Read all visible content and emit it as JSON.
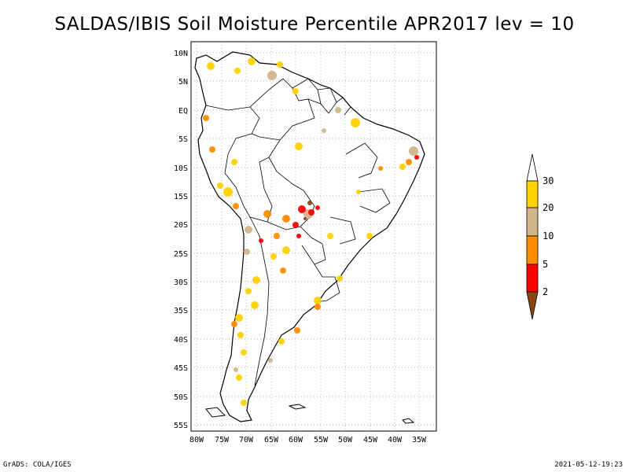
{
  "title": "SALDAS/IBIS Soil Moisture Percentile APR2017 lev = 10",
  "map": {
    "lat_labels": [
      "10N",
      "5N",
      "EQ",
      "5S",
      "10S",
      "15S",
      "20S",
      "25S",
      "30S",
      "35S",
      "40S",
      "45S",
      "50S",
      "55S"
    ],
    "lon_labels": [
      "80W",
      "75W",
      "70W",
      "65W",
      "60W",
      "55W",
      "50W",
      "45W",
      "40W",
      "35W"
    ],
    "lat_range": [
      -56,
      12
    ],
    "lon_range": [
      -81,
      -33
    ]
  },
  "colorbar": {
    "labels": [
      "30",
      "20",
      "10",
      "5",
      "2"
    ],
    "colors": {
      "above_30": "#ffffff",
      "20_30": "#ffd200",
      "10_20": "#d2b48c",
      "5_10": "#ff8c00",
      "2_5": "#ff0000",
      "below_2": "#8b4513"
    }
  },
  "footer": {
    "left": "GrADS: COLA/IGES",
    "right": "2021-05-12-19:23"
  }
}
